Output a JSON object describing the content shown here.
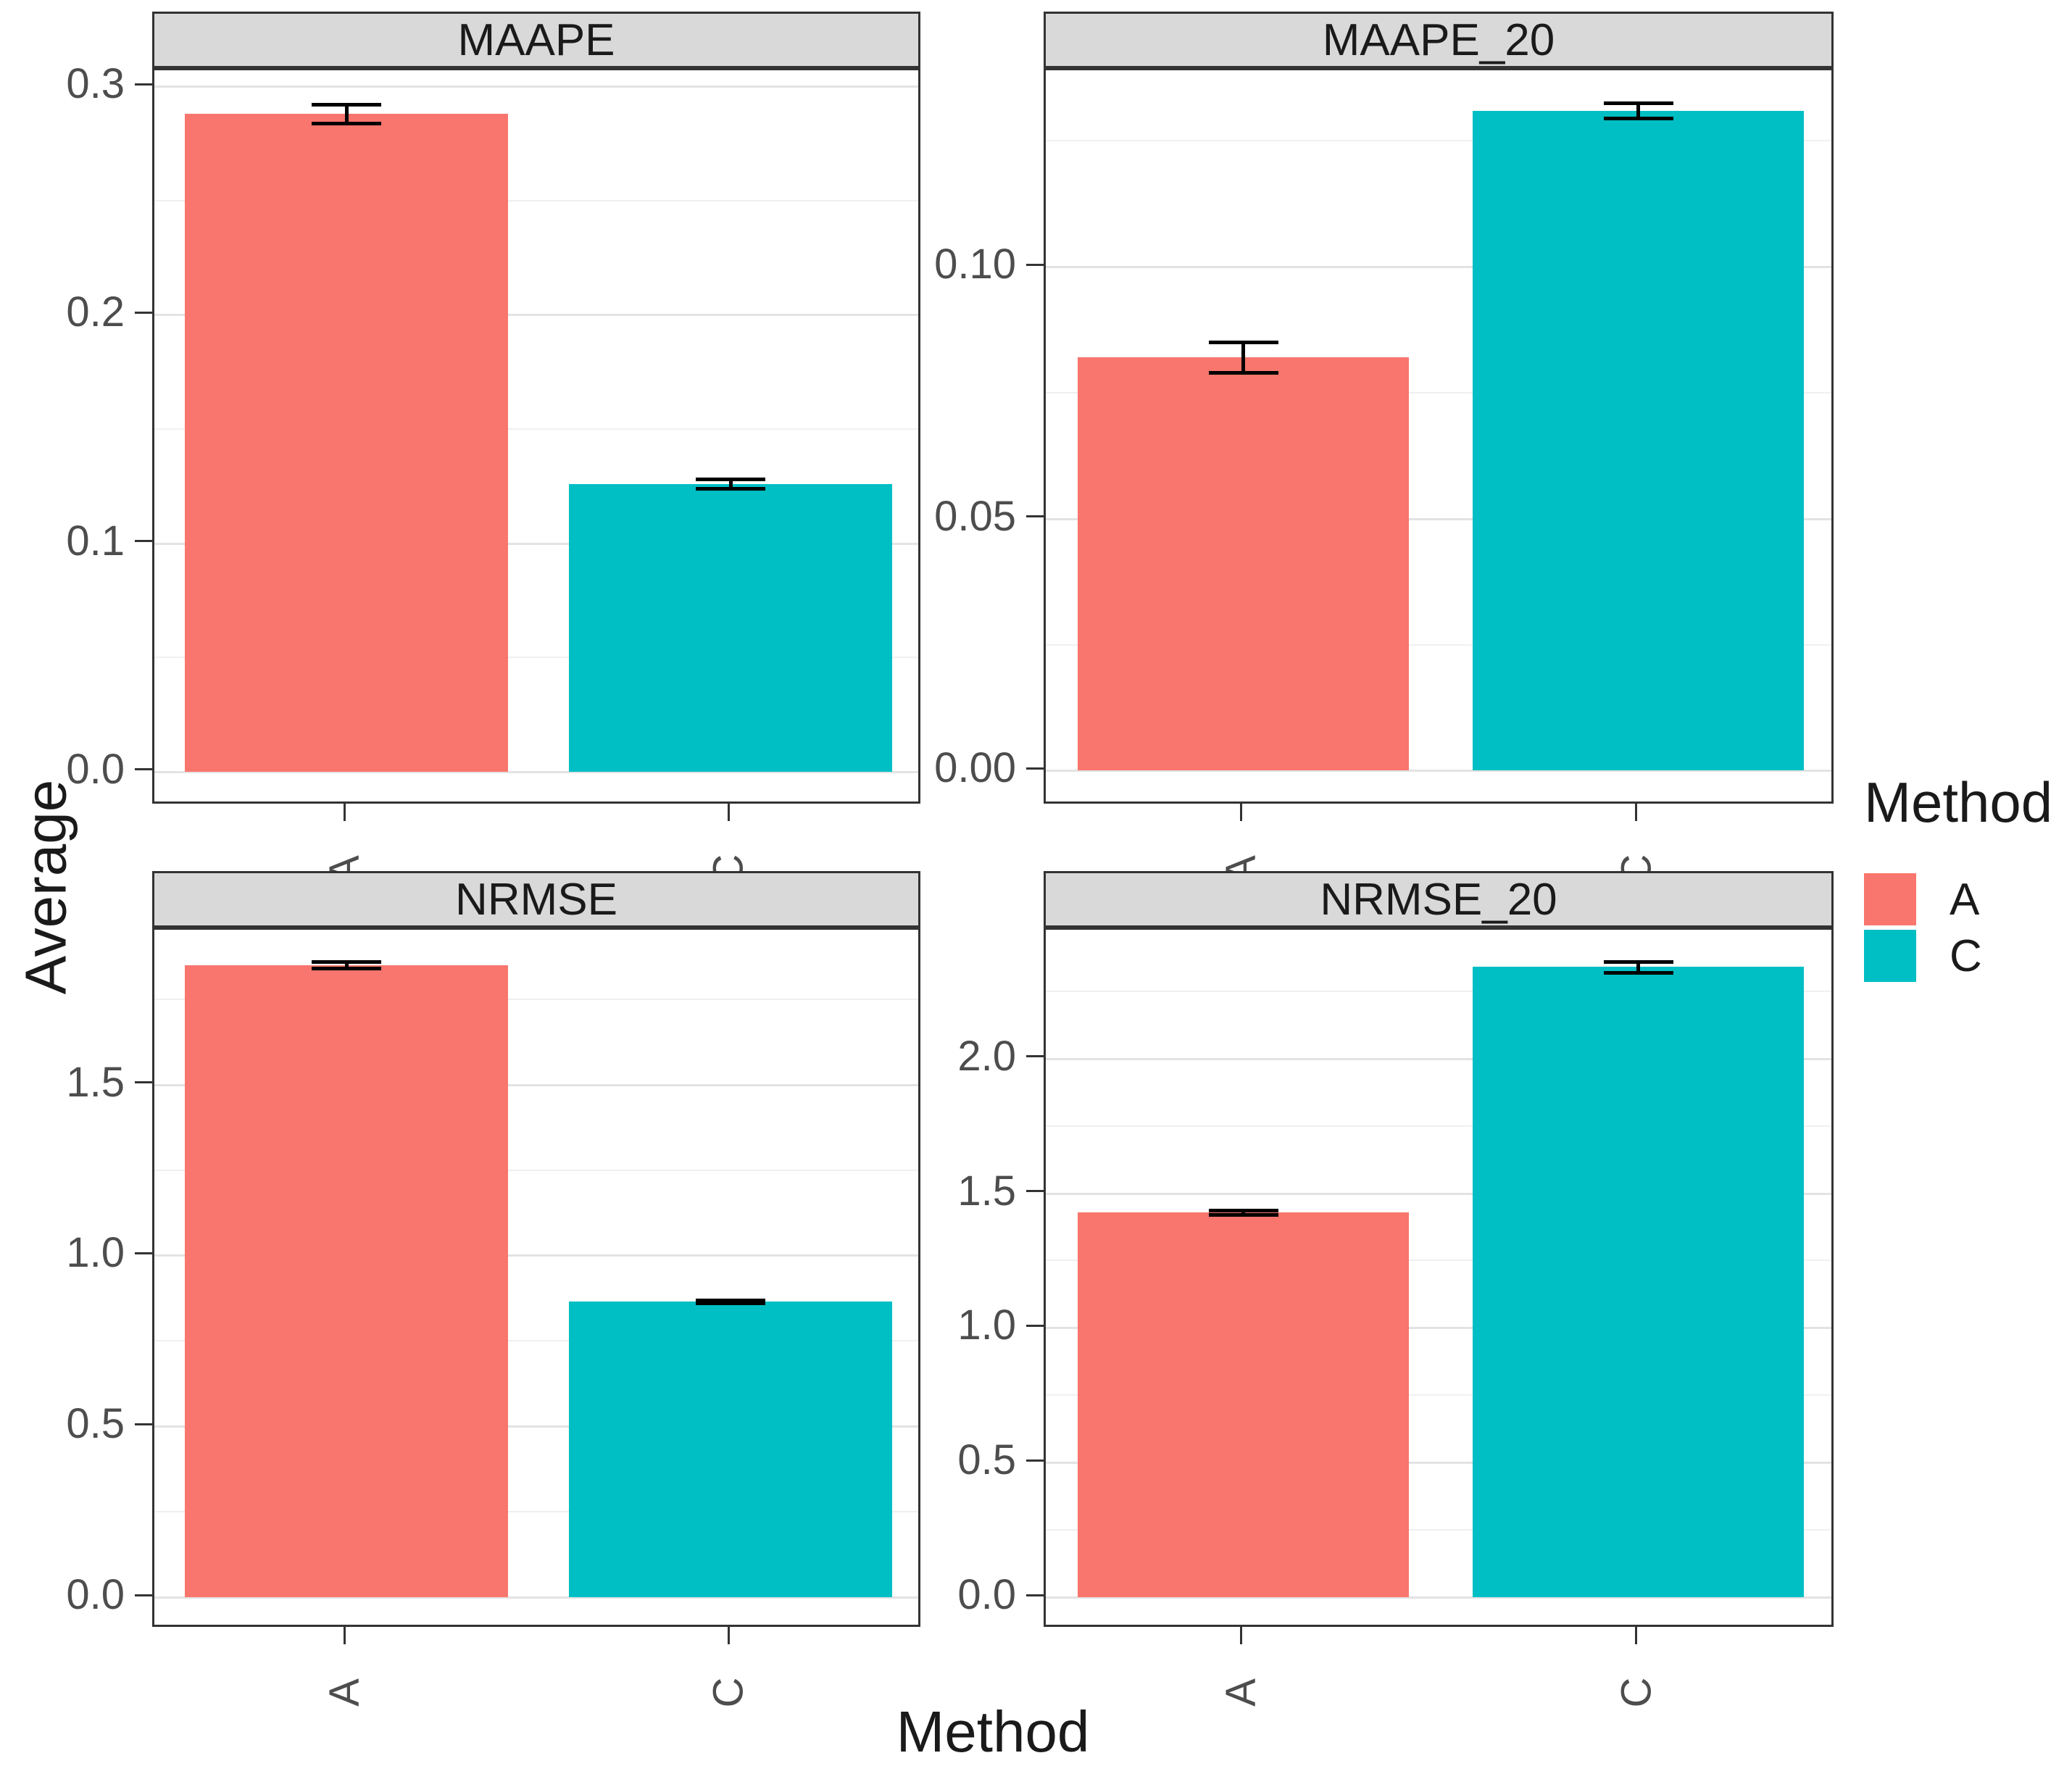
{
  "figure": {
    "y_axis_title": "Average",
    "x_axis_title": "Method",
    "background_color": "#ffffff",
    "strip_background_color": "#d9d9d9",
    "panel_border_color": "#333333",
    "legend": {
      "title": "Method",
      "position": "right",
      "items": [
        {
          "label": "A",
          "color": "#F8766D"
        },
        {
          "label": "C",
          "color": "#00BFC4"
        }
      ]
    }
  },
  "chart_data": [
    {
      "type": "bar",
      "title": "MAAPE",
      "categories": [
        "A",
        "C"
      ],
      "values": [
        0.288,
        0.126
      ],
      "errors": [
        0.004,
        0.002
      ],
      "series_colors": [
        "#F8766D",
        "#00BFC4"
      ],
      "yticks": [
        0.0,
        0.1,
        0.2,
        0.3
      ],
      "ytick_labels": [
        "0.0",
        "0.1",
        "0.2",
        "0.3"
      ],
      "ylim": [
        -0.015,
        0.307
      ],
      "grid": true
    },
    {
      "type": "bar",
      "title": "MAAPE_20",
      "categories": [
        "A",
        "C"
      ],
      "values": [
        0.082,
        0.131
      ],
      "errors": [
        0.003,
        0.0015
      ],
      "series_colors": [
        "#F8766D",
        "#00BFC4"
      ],
      "yticks": [
        0.0,
        0.05,
        0.1
      ],
      "ytick_labels": [
        "0.00",
        "0.05",
        "0.10"
      ],
      "ylim": [
        -0.007,
        0.139
      ],
      "grid": true
    },
    {
      "type": "bar",
      "title": "NRMSE",
      "categories": [
        "A",
        "C"
      ],
      "values": [
        1.85,
        0.865
      ],
      "errors": [
        0.01,
        0.004
      ],
      "series_colors": [
        "#F8766D",
        "#00BFC4"
      ],
      "yticks": [
        0.0,
        0.5,
        1.0,
        1.5
      ],
      "ytick_labels": [
        "0.0",
        "0.5",
        "1.0",
        "1.5"
      ],
      "ylim": [
        -0.093,
        1.953
      ],
      "grid": true
    },
    {
      "type": "bar",
      "title": "NRMSE_20",
      "categories": [
        "A",
        "C"
      ],
      "values": [
        1.43,
        2.34
      ],
      "errors": [
        0.008,
        0.02
      ],
      "series_colors": [
        "#F8766D",
        "#00BFC4"
      ],
      "yticks": [
        0.0,
        0.5,
        1.0,
        1.5,
        2.0
      ],
      "ytick_labels": [
        "0.0",
        "0.5",
        "1.0",
        "1.5",
        "2.0"
      ],
      "ylim": [
        -0.118,
        2.478
      ],
      "grid": true
    }
  ]
}
